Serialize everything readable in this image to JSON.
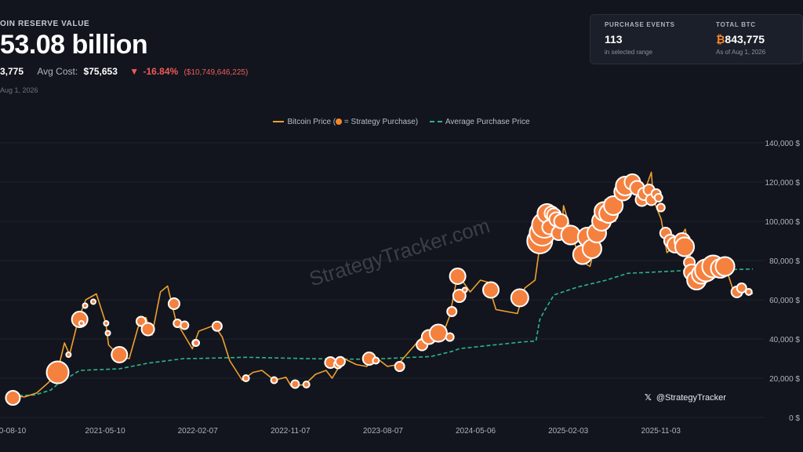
{
  "header": {
    "label": "OIN RESERVE VALUE",
    "value": "53.08 billion",
    "btc_holdings": "3,775",
    "avg_cost_label": "Avg Cost:",
    "avg_cost": "$75,653",
    "change_pct": "-16.84%",
    "change_abs": "($10,749,646,225)",
    "as_of": "Aug 1, 2026"
  },
  "cards": {
    "purchase_events_label": "PURCHASE EVENTS",
    "purchase_events_value": "113",
    "purchase_events_sub": "in selected range",
    "total_btc_label": "TOTAL BTC",
    "total_btc_symbol": "₿",
    "total_btc_value": "843,775",
    "total_btc_sub": "As of Aug 1, 2026"
  },
  "legend": {
    "price": "Bitcoin Price (",
    "price_mid": "= Strategy Purchase)",
    "avg": "Average Purchase Price"
  },
  "watermark": "StrategyTracker.com",
  "handle": "@StrategyTracker",
  "colors": {
    "bg": "#12151d",
    "price": "#f0a030",
    "bubble": "#f5813f",
    "bubble_stroke": "#ffffff",
    "avg": "#2bb58a",
    "grid": "#1f2430"
  },
  "chart_data": {
    "type": "line",
    "ylim": [
      0,
      140000
    ],
    "y_ticks": [
      "0 $",
      "20,000 $",
      "40,000 $",
      "60,000 $",
      "80,000 $",
      "100,000 $",
      "120,000 $",
      "140,000 $"
    ],
    "x_ticks": [
      {
        "label": "0-08-10",
        "date": "2020-08-10"
      },
      {
        "label": "2021-05-10",
        "date": "2021-05-10"
      },
      {
        "label": "2022-02-07",
        "date": "2022-02-07"
      },
      {
        "label": "2022-11-07",
        "date": "2022-11-07"
      },
      {
        "label": "2023-08-07",
        "date": "2023-08-07"
      },
      {
        "label": "2024-05-06",
        "date": "2024-05-06"
      },
      {
        "label": "2025-02-03",
        "date": "2025-02-03"
      },
      {
        "label": "2025-11-03",
        "date": "2025-11-03"
      }
    ],
    "series": [
      {
        "name": "Bitcoin Price",
        "points": [
          [
            "2020-08-10",
            11000
          ],
          [
            "2020-09-15",
            10500
          ],
          [
            "2020-10-20",
            12500
          ],
          [
            "2020-11-25",
            18000
          ],
          [
            "2020-12-20",
            23000
          ],
          [
            "2021-01-10",
            38000
          ],
          [
            "2021-01-25",
            32000
          ],
          [
            "2021-02-20",
            50000
          ],
          [
            "2021-03-14",
            60000
          ],
          [
            "2021-04-14",
            63000
          ],
          [
            "2021-05-12",
            48000
          ],
          [
            "2021-05-20",
            37000
          ],
          [
            "2021-06-22",
            31000
          ],
          [
            "2021-07-20",
            30000
          ],
          [
            "2021-08-15",
            46000
          ],
          [
            "2021-09-07",
            51000
          ],
          [
            "2021-09-25",
            42000
          ],
          [
            "2021-10-20",
            64000
          ],
          [
            "2021-11-10",
            67000
          ],
          [
            "2021-12-05",
            49000
          ],
          [
            "2022-01-22",
            35000
          ],
          [
            "2022-02-10",
            44000
          ],
          [
            "2022-03-28",
            47000
          ],
          [
            "2022-04-20",
            41000
          ],
          [
            "2022-05-12",
            29000
          ],
          [
            "2022-06-18",
            19000
          ],
          [
            "2022-07-20",
            23000
          ],
          [
            "2022-08-15",
            24000
          ],
          [
            "2022-09-20",
            19000
          ],
          [
            "2022-10-25",
            20500
          ],
          [
            "2022-11-09",
            16000
          ],
          [
            "2022-12-20",
            16800
          ],
          [
            "2023-01-20",
            22000
          ],
          [
            "2023-02-20",
            24000
          ],
          [
            "2023-03-10",
            20000
          ],
          [
            "2023-04-14",
            30000
          ],
          [
            "2023-05-20",
            27000
          ],
          [
            "2023-06-20",
            26000
          ],
          [
            "2023-07-14",
            31000
          ],
          [
            "2023-08-20",
            26000
          ],
          [
            "2023-09-20",
            27000
          ],
          [
            "2023-10-25",
            34000
          ],
          [
            "2023-12-05",
            42000
          ],
          [
            "2024-01-12",
            46000
          ],
          [
            "2024-01-23",
            39000
          ],
          [
            "2024-02-20",
            52000
          ],
          [
            "2024-03-14",
            73000
          ],
          [
            "2024-04-20",
            64000
          ],
          [
            "2024-05-20",
            70000
          ],
          [
            "2024-06-10",
            69000
          ],
          [
            "2024-07-05",
            55000
          ],
          [
            "2024-08-05",
            54000
          ],
          [
            "2024-09-06",
            53000
          ],
          [
            "2024-09-28",
            66000
          ],
          [
            "2024-10-28",
            70000
          ],
          [
            "2024-11-13",
            90000
          ],
          [
            "2024-11-22",
            99000
          ],
          [
            "2024-12-17",
            106000
          ],
          [
            "2025-01-13",
            91000
          ],
          [
            "2025-01-20",
            108000
          ],
          [
            "2025-02-25",
            87000
          ],
          [
            "2025-03-10",
            80000
          ],
          [
            "2025-04-08",
            77000
          ],
          [
            "2025-05-05",
            95000
          ],
          [
            "2025-05-22",
            111000
          ],
          [
            "2025-06-22",
            100000
          ],
          [
            "2025-07-14",
            122000
          ],
          [
            "2025-08-14",
            123000
          ],
          [
            "2025-09-01",
            108000
          ],
          [
            "2025-10-06",
            125000
          ],
          [
            "2025-10-12",
            111000
          ],
          [
            "2025-11-04",
            101000
          ],
          [
            "2025-11-21",
            84000
          ],
          [
            "2025-12-15",
            88000
          ],
          [
            "2026-01-14",
            96000
          ],
          [
            "2026-02-05",
            75000
          ],
          [
            "2026-02-20",
            68000
          ],
          [
            "2026-03-15",
            72000
          ],
          [
            "2026-04-15",
            75000
          ],
          [
            "2026-05-10",
            78000
          ],
          [
            "2026-06-10",
            62000
          ],
          [
            "2026-07-01",
            66000
          ],
          [
            "2026-08-01",
            63000
          ]
        ]
      },
      {
        "name": "Average Purchase Price",
        "points": [
          [
            "2020-08-10",
            11000
          ],
          [
            "2020-10-15",
            11500
          ],
          [
            "2020-12-01",
            14000
          ],
          [
            "2020-12-21",
            17000
          ],
          [
            "2021-02-24",
            24000
          ],
          [
            "2021-06-21",
            24800
          ],
          [
            "2021-09-13",
            27700
          ],
          [
            "2021-12-27",
            30000
          ],
          [
            "2022-02-07",
            30100
          ],
          [
            "2022-06-30",
            30700
          ],
          [
            "2022-12-27",
            30000
          ],
          [
            "2023-03-27",
            29800
          ],
          [
            "2023-06-27",
            29700
          ],
          [
            "2023-12-27",
            31100
          ],
          [
            "2024-02-26",
            33700
          ],
          [
            "2024-03-19",
            35100
          ],
          [
            "2024-06-20",
            36800
          ],
          [
            "2024-09-20",
            38500
          ],
          [
            "2024-10-31",
            39000
          ],
          [
            "2024-11-11",
            49900
          ],
          [
            "2024-11-25",
            54500
          ],
          [
            "2024-12-23",
            62500
          ],
          [
            "2025-03-01",
            66400
          ],
          [
            "2025-05-26",
            70000
          ],
          [
            "2025-07-28",
            73500
          ],
          [
            "2025-10-01",
            74000
          ],
          [
            "2025-12-31",
            74800
          ],
          [
            "2026-03-01",
            75100
          ],
          [
            "2026-06-01",
            75400
          ],
          [
            "2026-08-01",
            75653
          ]
        ]
      }
    ],
    "purchases": [
      [
        "2020-08-11",
        10000,
        9
      ],
      [
        "2020-12-21",
        23000,
        14
      ],
      [
        "2021-01-22",
        32000,
        3
      ],
      [
        "2021-02-24",
        50000,
        10
      ],
      [
        "2021-03-01",
        48000,
        3
      ],
      [
        "2021-03-12",
        57000,
        3
      ],
      [
        "2021-04-05",
        59000,
        3
      ],
      [
        "2021-05-13",
        48000,
        3
      ],
      [
        "2021-05-18",
        43000,
        3
      ],
      [
        "2021-06-21",
        32000,
        10
      ],
      [
        "2021-08-24",
        49000,
        6
      ],
      [
        "2021-09-13",
        45000,
        8
      ],
      [
        "2021-11-29",
        58000,
        7
      ],
      [
        "2021-12-09",
        48000,
        5
      ],
      [
        "2021-12-30",
        47000,
        5
      ],
      [
        "2022-01-31",
        38000,
        4
      ],
      [
        "2022-02-02",
        38000,
        4
      ],
      [
        "2022-04-05",
        46500,
        6
      ],
      [
        "2022-06-29",
        20000,
        4
      ],
      [
        "2022-09-20",
        19000,
        4
      ],
      [
        "2022-11-21",
        17000,
        5
      ],
      [
        "2022-12-24",
        16800,
        4
      ],
      [
        "2023-03-05",
        28000,
        7
      ],
      [
        "2023-03-27",
        27000,
        5
      ],
      [
        "2023-04-03",
        28500,
        6
      ],
      [
        "2023-06-27",
        30000,
        8
      ],
      [
        "2023-07-17",
        29000,
        4
      ],
      [
        "2023-09-25",
        26000,
        6
      ],
      [
        "2023-11-30",
        37000,
        7
      ],
      [
        "2023-12-20",
        41000,
        9
      ],
      [
        "2024-01-17",
        43000,
        11
      ],
      [
        "2024-02-20",
        41000,
        5
      ],
      [
        "2024-02-26",
        54000,
        6
      ],
      [
        "2024-03-14",
        72000,
        10
      ],
      [
        "2024-03-19",
        62000,
        8
      ],
      [
        "2024-04-04",
        65000,
        3
      ],
      [
        "2024-06-20",
        65000,
        10
      ],
      [
        "2024-09-13",
        61000,
        11
      ],
      [
        "2024-11-11",
        90000,
        16
      ],
      [
        "2024-11-18",
        94000,
        16
      ],
      [
        "2024-11-25",
        98000,
        16
      ],
      [
        "2024-12-02",
        104000,
        12
      ],
      [
        "2024-12-09",
        97000,
        9
      ],
      [
        "2024-12-16",
        104000,
        9
      ],
      [
        "2024-12-23",
        103000,
        9
      ],
      [
        "2024-12-30",
        101000,
        9
      ],
      [
        "2025-01-06",
        94000,
        9
      ],
      [
        "2025-01-13",
        100000,
        9
      ],
      [
        "2025-02-10",
        93000,
        12
      ],
      [
        "2025-03-17",
        83000,
        12
      ],
      [
        "2025-03-31",
        92000,
        12
      ],
      [
        "2025-04-14",
        86000,
        12
      ],
      [
        "2025-04-28",
        94000,
        12
      ],
      [
        "2025-05-12",
        100000,
        12
      ],
      [
        "2025-05-19",
        105000,
        12
      ],
      [
        "2025-06-02",
        104000,
        12
      ],
      [
        "2025-06-16",
        108000,
        12
      ],
      [
        "2025-07-14",
        115000,
        11
      ],
      [
        "2025-07-21",
        118000,
        12
      ],
      [
        "2025-08-11",
        120000,
        10
      ],
      [
        "2025-08-25",
        117000,
        9
      ],
      [
        "2025-09-08",
        111000,
        8
      ],
      [
        "2025-09-15",
        114000,
        8
      ],
      [
        "2025-09-29",
        116000,
        7
      ],
      [
        "2025-10-06",
        111000,
        7
      ],
      [
        "2025-10-20",
        114000,
        6
      ],
      [
        "2025-10-27",
        112000,
        5
      ],
      [
        "2025-11-03",
        107000,
        5
      ],
      [
        "2025-11-17",
        94000,
        7
      ],
      [
        "2025-12-01",
        90000,
        8
      ],
      [
        "2025-12-15",
        88000,
        10
      ],
      [
        "2026-01-05",
        90000,
        10
      ],
      [
        "2026-01-12",
        87000,
        12
      ],
      [
        "2026-01-26",
        79000,
        7
      ],
      [
        "2026-02-02",
        74000,
        10
      ],
      [
        "2026-02-16",
        70000,
        12
      ],
      [
        "2026-03-02",
        73000,
        12
      ],
      [
        "2026-03-16",
        75000,
        14
      ],
      [
        "2026-04-06",
        77000,
        14
      ],
      [
        "2026-04-27",
        76000,
        12
      ],
      [
        "2026-05-11",
        77000,
        12
      ],
      [
        "2026-06-15",
        64000,
        7
      ],
      [
        "2026-06-29",
        66000,
        6
      ],
      [
        "2026-07-20",
        64000,
        4
      ]
    ]
  }
}
